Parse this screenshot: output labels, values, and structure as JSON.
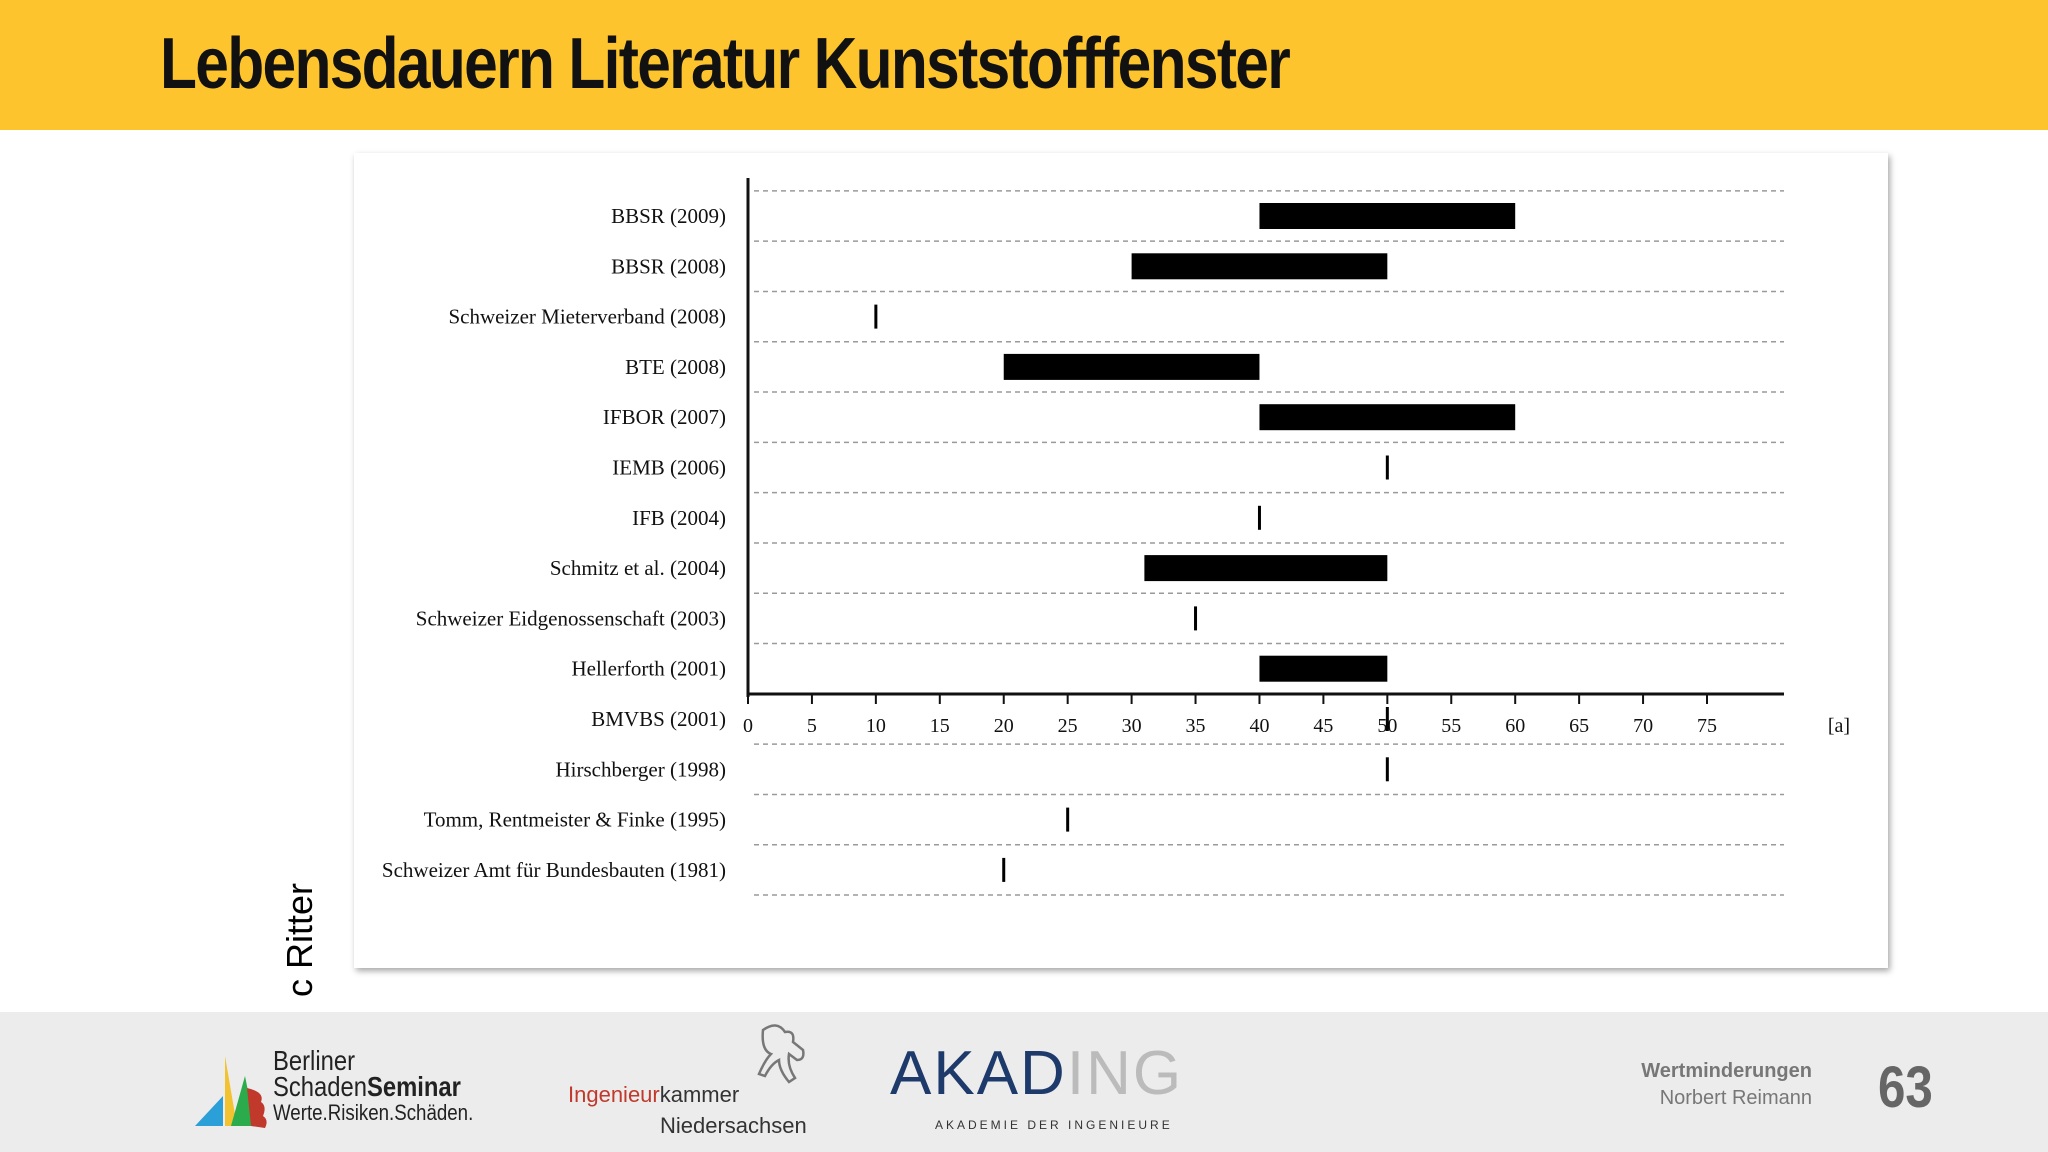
{
  "slide": {
    "title": "Lebensdauern Literatur Kunststofffenster",
    "copyright": "c Ritter",
    "page_number": "63",
    "colors": {
      "title_bar": "#fdc42e",
      "footer_bg": "#ececec",
      "bar": "#000000"
    }
  },
  "chart_data": {
    "type": "bar",
    "orientation": "horizontal-range",
    "title": "",
    "xlabel": "[a]",
    "xlim": [
      0,
      75
    ],
    "xticks": [
      0,
      5,
      10,
      15,
      20,
      25,
      30,
      35,
      40,
      45,
      50,
      55,
      60,
      65,
      70,
      75
    ],
    "grid": "dashed-horizontal",
    "categories": [
      "BBSR (2009)",
      "BBSR (2008)",
      "Schweizer Mieterverband (2008)",
      "BTE (2008)",
      "IFBOR (2007)",
      "IEMB (2006)",
      "IFB (2004)",
      "Schmitz et al. (2004)",
      "Schweizer Eidgenossenschaft (2003)",
      "Hellerforth (2001)",
      "BMVBS (2001)",
      "Hirschberger (1998)",
      "Tomm, Rentmeister & Finke (1995)",
      "Schweizer Amt für Bundesbauten (1981)"
    ],
    "ranges": [
      [
        40,
        60
      ],
      [
        30,
        50
      ],
      [
        10,
        10
      ],
      [
        20,
        40
      ],
      [
        40,
        60
      ],
      [
        50,
        50
      ],
      [
        40,
        40
      ],
      [
        31,
        50
      ],
      [
        35,
        35
      ],
      [
        40,
        50
      ],
      [
        50,
        50
      ],
      [
        50,
        50
      ],
      [
        25,
        25
      ],
      [
        20,
        20
      ]
    ]
  },
  "footer": {
    "bss": {
      "line1": "Berliner",
      "line2a": "Schaden",
      "line2b": "Seminar",
      "line3": "Werte.Risiken.Schäden."
    },
    "ik": {
      "accent": "Ingenieur",
      "rest": "kammer",
      "line2": "Niedersachsen"
    },
    "akad": {
      "part1": "AKAD",
      "part2": "ING",
      "sub": "AKADEMIE DER INGENIEURE"
    },
    "meta": {
      "line1": "Wertminderungen",
      "line2": "Norbert Reimann"
    }
  }
}
